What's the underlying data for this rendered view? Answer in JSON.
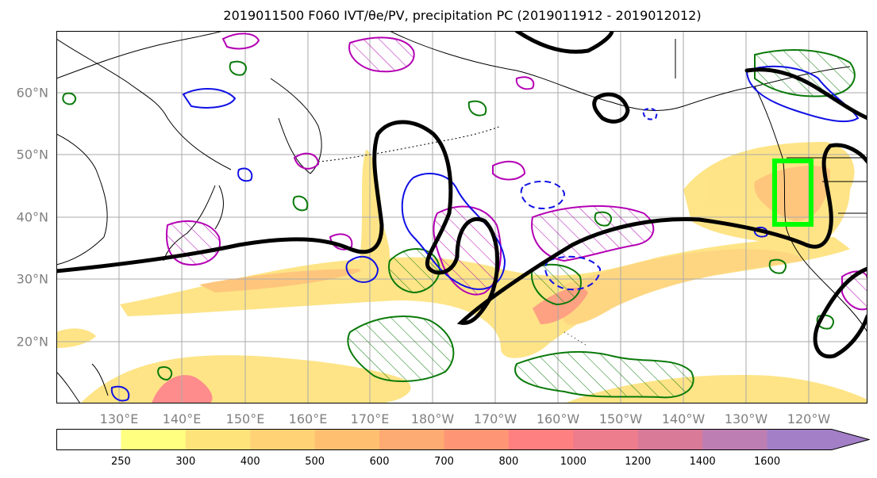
{
  "title": "2019011500 F060 IVT/θe/PV, precipitation PC (2019011912 - 2019012012)",
  "map": {
    "lat_labels": [
      "60°N",
      "50°N",
      "40°N",
      "30°N",
      "20°N"
    ],
    "lon_labels": [
      "130°E",
      "140°E",
      "150°E",
      "160°E",
      "170°E",
      "180°W",
      "170°W",
      "160°W",
      "150°W",
      "140°W",
      "130°W",
      "120°W"
    ],
    "lon_range": [
      119.5,
      249.5
    ],
    "lat_range": [
      10,
      70
    ],
    "gridlines": true,
    "colors": {
      "coast": "#000000",
      "theta_e_contour": "#000000",
      "pv_positive": "#b400b4",
      "pv_negative": "#1010e6",
      "precip_contour": "#0a7a0a",
      "target_box": "#00ff00",
      "grid": "#aaaaaa"
    }
  },
  "colorbar": {
    "levels": [
      "250",
      "300",
      "400",
      "500",
      "600",
      "700",
      "800",
      "1000",
      "1200",
      "1400",
      "1600"
    ],
    "colors": [
      "#ffffff",
      "#ffff80",
      "#fee27a",
      "#fed275",
      "#fec070",
      "#feaa73",
      "#fe9675",
      "#fe8080",
      "#ed7c8c",
      "#d87a98",
      "#bd7eb4",
      "#a27fc6"
    ],
    "extend": "max"
  }
}
